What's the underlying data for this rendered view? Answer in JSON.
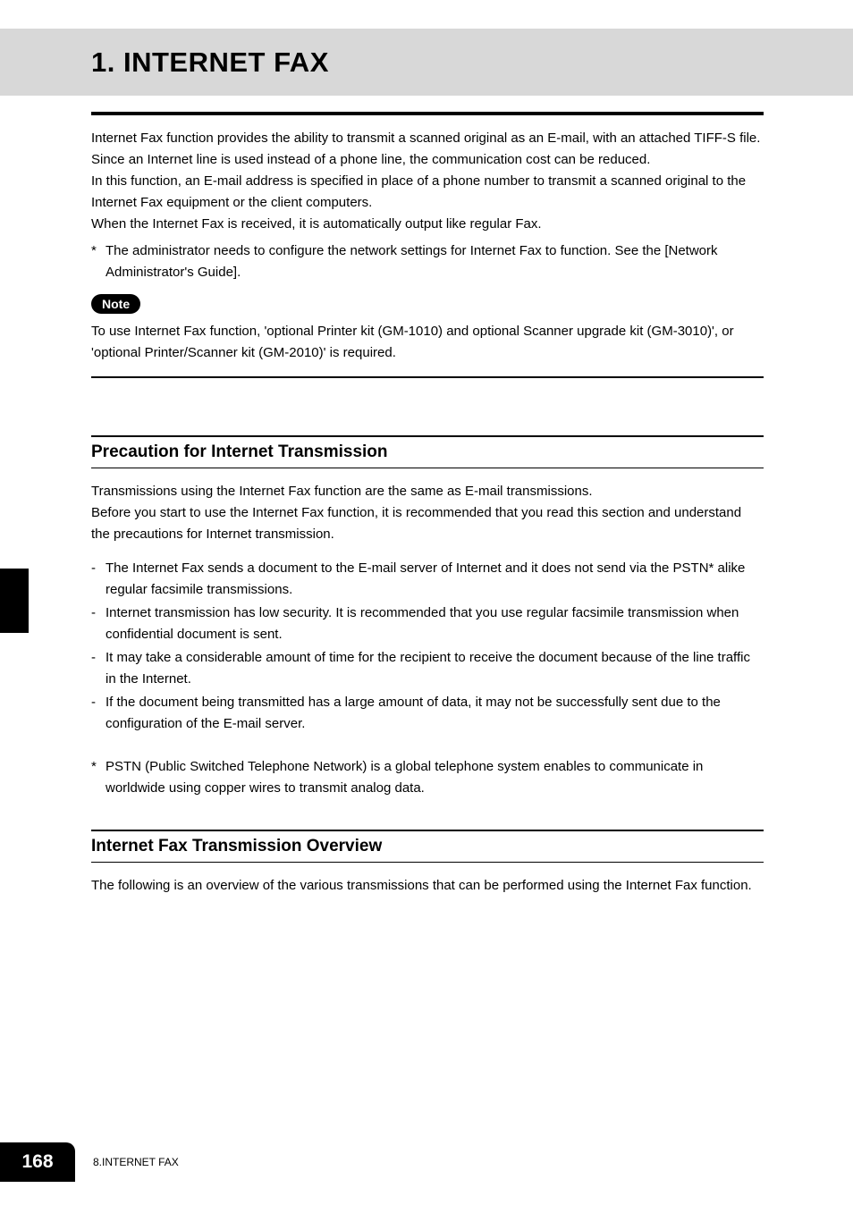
{
  "header": {
    "title": "1. INTERNET FAX"
  },
  "intro": {
    "p1": "Internet Fax function provides the ability to transmit a scanned original as an E-mail, with an attached TIFF-S file. Since an Internet line is used instead of a phone line, the communication cost can be reduced.",
    "p2": "In this function, an E-mail address is specified in place of a phone number to transmit a scanned original to the Internet Fax equipment or the client computers.",
    "p3": "When the Internet Fax is received, it is automatically output like regular Fax.",
    "star1": "The administrator needs to configure the network settings for Internet Fax to function. See the [Network Administrator's Guide].",
    "note_label": "Note",
    "note_text": "To use Internet Fax function, 'optional Printer kit (GM-1010) and optional Scanner upgrade kit (GM-3010)', or 'optional Printer/Scanner kit (GM-2010)' is required."
  },
  "section1": {
    "heading": "Precaution for Internet Transmission",
    "p1": "Transmissions using the Internet Fax function are the same as E-mail transmissions.",
    "p2": "Before you start to use the Internet Fax function, it is recommended that you read this section and understand the precautions for Internet transmission.",
    "items": [
      "The Internet Fax sends a document to the E-mail server of Internet and it does not send via the PSTN* alike regular facsimile transmissions.",
      "Internet transmission has low security. It is recommended that you use regular facsimile transmission when confidential document is sent.",
      "It may take a considerable amount of time for the recipient to receive the document because of the line traffic in the Internet.",
      "If the document being transmitted has a large amount of data, it may not be successfully sent due to the configuration of the E-mail server."
    ],
    "footnote": "PSTN (Public Switched Telephone Network) is a global telephone system enables to communicate in worldwide using copper wires to transmit analog data."
  },
  "section2": {
    "heading": "Internet Fax Transmission Overview",
    "p1": "The following is an overview of the various transmissions that can be performed using the Internet Fax function."
  },
  "footer": {
    "page_number": "168",
    "chapter": "8.INTERNET FAX"
  }
}
